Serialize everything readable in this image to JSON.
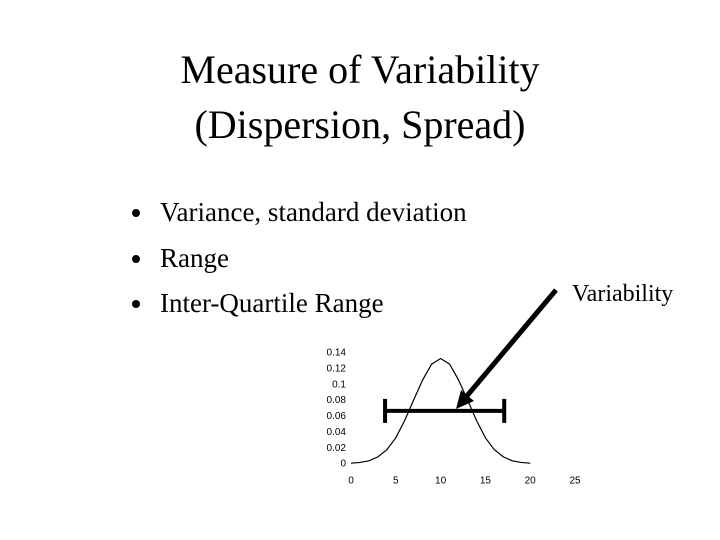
{
  "slide": {
    "title": [
      "Measure of Variability",
      "(Dispersion, Spread)"
    ],
    "bullets": [
      "Variance, standard deviation",
      "Range",
      "Inter-Quartile Range"
    ],
    "annotation": "Variability"
  },
  "chart_data": {
    "type": "line",
    "color": "#000000",
    "x": [
      0,
      1,
      2,
      3,
      4,
      5,
      6,
      7,
      8,
      9,
      10,
      11,
      12,
      13,
      14,
      15,
      16,
      17,
      18,
      19,
      20
    ],
    "values": [
      0.001,
      0.002,
      0.004,
      0.009,
      0.018,
      0.033,
      0.055,
      0.081,
      0.106,
      0.126,
      0.133,
      0.126,
      0.106,
      0.081,
      0.055,
      0.033,
      0.018,
      0.009,
      0.004,
      0.002,
      0.001
    ],
    "interval": {
      "x": [
        3.8,
        17.1
      ],
      "y": 0.067
    },
    "xlim": [
      0,
      25
    ],
    "xticks": [
      0,
      5,
      10,
      15,
      20,
      25
    ],
    "ylim": [
      0,
      0.14
    ],
    "yticks": [
      0,
      0.02,
      0.04,
      0.06,
      0.08,
      0.1,
      0.12,
      0.14
    ]
  }
}
